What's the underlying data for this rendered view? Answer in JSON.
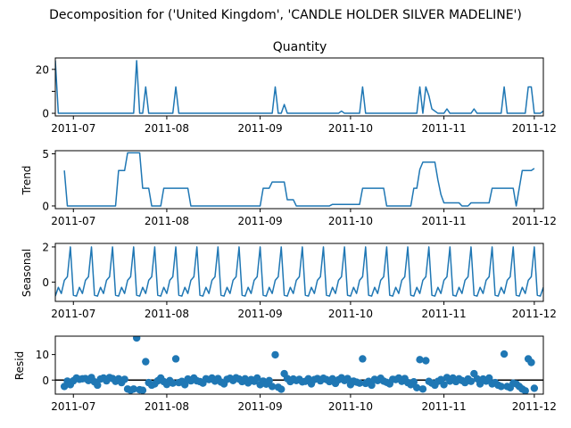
{
  "figure": {
    "suptitle": "Decomposition for ('United Kingdom', 'CANDLE HOLDER SILVER MADELINE')",
    "line_color": "#1f77b4",
    "zero_line_color": "#000000"
  },
  "chart_data": [
    {
      "type": "line",
      "title": "Quantity",
      "ylabel": "",
      "xlabel": "",
      "x_range": [
        "2011-06-25",
        "2011-12-04"
      ],
      "x_ticks": [
        "2011-07",
        "2011-08",
        "2011-09",
        "2011-10",
        "2011-11",
        "2011-12"
      ],
      "ylim": [
        -1.2,
        25.2
      ],
      "y_ticks": [
        0,
        10,
        20
      ],
      "y_tick_labels": [
        "0",
        "",
        "20"
      ],
      "points": [
        [
          "2011-06-25",
          24
        ],
        [
          "2011-06-26",
          0
        ],
        [
          "2011-07-21",
          0
        ],
        [
          "2011-07-22",
          24
        ],
        [
          "2011-07-23",
          0
        ],
        [
          "2011-07-24",
          0
        ],
        [
          "2011-07-25",
          12
        ],
        [
          "2011-07-26",
          0
        ],
        [
          "2011-08-03",
          0
        ],
        [
          "2011-08-04",
          12
        ],
        [
          "2011-08-05",
          0
        ],
        [
          "2011-09-05",
          0
        ],
        [
          "2011-09-06",
          12
        ],
        [
          "2011-09-07",
          0
        ],
        [
          "2011-09-08",
          0
        ],
        [
          "2011-09-09",
          4
        ],
        [
          "2011-09-10",
          0
        ],
        [
          "2011-09-27",
          0
        ],
        [
          "2011-09-28",
          1
        ],
        [
          "2011-09-29",
          0
        ],
        [
          "2011-10-04",
          0
        ],
        [
          "2011-10-05",
          12
        ],
        [
          "2011-10-06",
          0
        ],
        [
          "2011-10-23",
          0
        ],
        [
          "2011-10-24",
          12
        ],
        [
          "2011-10-25",
          0
        ],
        [
          "2011-10-26",
          12
        ],
        [
          "2011-10-27",
          8
        ],
        [
          "2011-10-28",
          2
        ],
        [
          "2011-10-30",
          0
        ],
        [
          "2011-11-01",
          0
        ],
        [
          "2011-11-02",
          2
        ],
        [
          "2011-11-03",
          0
        ],
        [
          "2011-11-10",
          0
        ],
        [
          "2011-11-11",
          2
        ],
        [
          "2011-11-12",
          0
        ],
        [
          "2011-11-20",
          0
        ],
        [
          "2011-11-21",
          12
        ],
        [
          "2011-11-22",
          0
        ],
        [
          "2011-11-28",
          0
        ],
        [
          "2011-11-29",
          12
        ],
        [
          "2011-11-30",
          12
        ],
        [
          "2011-12-01",
          0
        ],
        [
          "2011-12-03",
          0
        ],
        [
          "2011-12-04",
          1
        ]
      ]
    },
    {
      "type": "line",
      "title": "",
      "ylabel": "Trend",
      "xlabel": "",
      "x_range": [
        "2011-06-25",
        "2011-12-04"
      ],
      "x_ticks": [
        "2011-07",
        "2011-08",
        "2011-09",
        "2011-10",
        "2011-11",
        "2011-12"
      ],
      "ylim": [
        -0.26,
        5.3
      ],
      "y_ticks": [
        0,
        5
      ],
      "y_tick_labels": [
        "0",
        "5"
      ],
      "points": [
        [
          "2011-06-28",
          3.4
        ],
        [
          "2011-06-29",
          0
        ],
        [
          "2011-07-15",
          0
        ],
        [
          "2011-07-16",
          3.4
        ],
        [
          "2011-07-18",
          3.4
        ],
        [
          "2011-07-19",
          5.1
        ],
        [
          "2011-07-23",
          5.1
        ],
        [
          "2011-07-24",
          1.7
        ],
        [
          "2011-07-26",
          1.7
        ],
        [
          "2011-07-27",
          0
        ],
        [
          "2011-07-30",
          0
        ],
        [
          "2011-07-31",
          1.7
        ],
        [
          "2011-08-08",
          1.7
        ],
        [
          "2011-08-09",
          0
        ],
        [
          "2011-09-01",
          0
        ],
        [
          "2011-09-02",
          1.7
        ],
        [
          "2011-09-04",
          1.7
        ],
        [
          "2011-09-05",
          2.3
        ],
        [
          "2011-09-09",
          2.3
        ],
        [
          "2011-09-10",
          0.6
        ],
        [
          "2011-09-12",
          0.6
        ],
        [
          "2011-09-13",
          0
        ],
        [
          "2011-09-24",
          0
        ],
        [
          "2011-09-25",
          0.15
        ],
        [
          "2011-10-04",
          0.15
        ],
        [
          "2011-10-05",
          1.7
        ],
        [
          "2011-10-12",
          1.7
        ],
        [
          "2011-10-13",
          0
        ],
        [
          "2011-10-21",
          0
        ],
        [
          "2011-10-22",
          1.7
        ],
        [
          "2011-10-23",
          1.7
        ],
        [
          "2011-10-24",
          3.5
        ],
        [
          "2011-10-25",
          4.2
        ],
        [
          "2011-10-29",
          4.2
        ],
        [
          "2011-10-30",
          2.5
        ],
        [
          "2011-10-31",
          1.1
        ],
        [
          "2011-11-01",
          0.3
        ],
        [
          "2011-11-06",
          0.3
        ],
        [
          "2011-11-07",
          0
        ],
        [
          "2011-11-09",
          0
        ],
        [
          "2011-11-10",
          0.3
        ],
        [
          "2011-11-16",
          0.3
        ],
        [
          "2011-11-17",
          1.7
        ],
        [
          "2011-11-24",
          1.7
        ],
        [
          "2011-11-25",
          0
        ],
        [
          "2011-11-27",
          3.4
        ],
        [
          "2011-11-30",
          3.4
        ],
        [
          "2011-12-01",
          3.6
        ]
      ]
    },
    {
      "type": "line",
      "title": "",
      "ylabel": "Seasonal",
      "xlabel": "",
      "x_range": [
        "2011-06-25",
        "2011-12-04"
      ],
      "x_ticks": [
        "2011-07",
        "2011-08",
        "2011-09",
        "2011-10",
        "2011-11",
        "2011-12"
      ],
      "ylim": [
        -1.1,
        2.2
      ],
      "y_ticks": [
        0,
        2
      ],
      "y_tick_labels": [
        "0",
        "2"
      ],
      "period": 7,
      "cycle_start": "2011-06-25",
      "pattern": [
        -0.8,
        -0.3,
        -0.65,
        0.1,
        0.3,
        2.0,
        -0.75
      ]
    },
    {
      "type": "scatter",
      "title": "",
      "ylabel": "Resid",
      "xlabel": "",
      "x_range": [
        "2011-06-25",
        "2011-12-04"
      ],
      "x_ticks": [
        "2011-07",
        "2011-08",
        "2011-09",
        "2011-10",
        "2011-11",
        "2011-12"
      ],
      "ylim": [
        -5.5,
        17.2
      ],
      "y_ticks": [
        0,
        10
      ],
      "y_tick_labels": [
        "0",
        "10"
      ],
      "zero_line": true,
      "points": [
        [
          "2011-06-28",
          -2.5
        ],
        [
          "2011-06-29",
          -0.4
        ],
        [
          "2011-06-30",
          -1.8
        ],
        [
          "2011-07-01",
          -0.3
        ],
        [
          "2011-07-02",
          0.8
        ],
        [
          "2011-07-03",
          0.3
        ],
        [
          "2011-07-04",
          0.5
        ],
        [
          "2011-07-05",
          0.6
        ],
        [
          "2011-07-06",
          -0.2
        ],
        [
          "2011-07-07",
          1.0
        ],
        [
          "2011-07-08",
          -0.7
        ],
        [
          "2011-07-09",
          -2.0
        ],
        [
          "2011-07-10",
          0.4
        ],
        [
          "2011-07-11",
          0.8
        ],
        [
          "2011-07-12",
          -0.3
        ],
        [
          "2011-07-13",
          1.0
        ],
        [
          "2011-07-14",
          0.6
        ],
        [
          "2011-07-15",
          -0.5
        ],
        [
          "2011-07-16",
          0.5
        ],
        [
          "2011-07-17",
          -1.0
        ],
        [
          "2011-07-18",
          0.3
        ],
        [
          "2011-07-19",
          -3.5
        ],
        [
          "2011-07-20",
          -4.0
        ],
        [
          "2011-07-21",
          -3.5
        ],
        [
          "2011-07-22",
          16.5
        ],
        [
          "2011-07-23",
          -3.8
        ],
        [
          "2011-07-24",
          -4.0
        ],
        [
          "2011-07-25",
          7.2
        ],
        [
          "2011-07-26",
          -1.0
        ],
        [
          "2011-07-27",
          -2.0
        ],
        [
          "2011-07-28",
          -1.5
        ],
        [
          "2011-07-29",
          -0.3
        ],
        [
          "2011-07-30",
          0.8
        ],
        [
          "2011-07-31",
          -0.6
        ],
        [
          "2011-08-01",
          -1.7
        ],
        [
          "2011-08-02",
          -0.2
        ],
        [
          "2011-08-03",
          -1.2
        ],
        [
          "2011-08-04",
          8.3
        ],
        [
          "2011-08-05",
          -1.0
        ],
        [
          "2011-08-06",
          -0.5
        ],
        [
          "2011-08-07",
          -1.8
        ],
        [
          "2011-08-08",
          0.4
        ],
        [
          "2011-08-09",
          -0.3
        ],
        [
          "2011-08-10",
          0.8
        ],
        [
          "2011-08-11",
          -0.3
        ],
        [
          "2011-08-12",
          -0.6
        ],
        [
          "2011-08-13",
          -1.2
        ],
        [
          "2011-08-14",
          0.5
        ],
        [
          "2011-08-15",
          0.2
        ],
        [
          "2011-08-16",
          0.8
        ],
        [
          "2011-08-17",
          -0.4
        ],
        [
          "2011-08-18",
          0.6
        ],
        [
          "2011-08-19",
          -0.8
        ],
        [
          "2011-08-20",
          -1.5
        ],
        [
          "2011-08-21",
          0.3
        ],
        [
          "2011-08-22",
          0.7
        ],
        [
          "2011-08-23",
          -0.2
        ],
        [
          "2011-08-24",
          0.9
        ],
        [
          "2011-08-25",
          0.4
        ],
        [
          "2011-08-26",
          -0.6
        ],
        [
          "2011-08-27",
          0.5
        ],
        [
          "2011-08-28",
          -1.1
        ],
        [
          "2011-08-29",
          0.2
        ],
        [
          "2011-08-30",
          -0.5
        ],
        [
          "2011-08-31",
          0.8
        ],
        [
          "2011-09-01",
          -1.8
        ],
        [
          "2011-09-02",
          -0.4
        ],
        [
          "2011-09-03",
          -1.6
        ],
        [
          "2011-09-04",
          -0.2
        ],
        [
          "2011-09-05",
          -2.5
        ],
        [
          "2011-09-06",
          9.9
        ],
        [
          "2011-09-07",
          -2.8
        ],
        [
          "2011-09-08",
          -3.6
        ],
        [
          "2011-09-09",
          2.5
        ],
        [
          "2011-09-10",
          0.6
        ],
        [
          "2011-09-11",
          -0.6
        ],
        [
          "2011-09-12",
          0.4
        ],
        [
          "2011-09-13",
          -0.2
        ],
        [
          "2011-09-14",
          0.3
        ],
        [
          "2011-09-15",
          -0.7
        ],
        [
          "2011-09-16",
          -0.5
        ],
        [
          "2011-09-17",
          0.5
        ],
        [
          "2011-09-18",
          -1.5
        ],
        [
          "2011-09-19",
          0.2
        ],
        [
          "2011-09-20",
          0.6
        ],
        [
          "2011-09-21",
          -0.3
        ],
        [
          "2011-09-22",
          0.7
        ],
        [
          "2011-09-23",
          0.2
        ],
        [
          "2011-09-24",
          -0.6
        ],
        [
          "2011-09-25",
          0.5
        ],
        [
          "2011-09-26",
          -1.3
        ],
        [
          "2011-09-27",
          0.1
        ],
        [
          "2011-09-28",
          0.9
        ],
        [
          "2011-09-29",
          -0.2
        ],
        [
          "2011-09-30",
          0.6
        ],
        [
          "2011-10-01",
          -1.8
        ],
        [
          "2011-10-02",
          -0.4
        ],
        [
          "2011-10-03",
          -0.8
        ],
        [
          "2011-10-04",
          -1.2
        ],
        [
          "2011-10-05",
          8.3
        ],
        [
          "2011-10-06",
          -1.3
        ],
        [
          "2011-10-07",
          -0.5
        ],
        [
          "2011-10-08",
          -2.0
        ],
        [
          "2011-10-09",
          0.3
        ],
        [
          "2011-10-10",
          -0.2
        ],
        [
          "2011-10-11",
          0.7
        ],
        [
          "2011-10-12",
          -0.4
        ],
        [
          "2011-10-13",
          -0.9
        ],
        [
          "2011-10-14",
          -1.5
        ],
        [
          "2011-10-15",
          0.3
        ],
        [
          "2011-10-16",
          0.2
        ],
        [
          "2011-10-17",
          0.8
        ],
        [
          "2011-10-18",
          -0.5
        ],
        [
          "2011-10-19",
          0.6
        ],
        [
          "2011-10-20",
          -1.0
        ],
        [
          "2011-10-21",
          -1.8
        ],
        [
          "2011-10-22",
          -0.7
        ],
        [
          "2011-10-23",
          -3.0
        ],
        [
          "2011-10-24",
          8.0
        ],
        [
          "2011-10-25",
          -3.5
        ],
        [
          "2011-10-26",
          7.6
        ],
        [
          "2011-10-27",
          -0.5
        ],
        [
          "2011-10-28",
          -1.2
        ],
        [
          "2011-10-29",
          -2.0
        ],
        [
          "2011-10-30",
          -0.5
        ],
        [
          "2011-10-31",
          0.2
        ],
        [
          "2011-11-01",
          -1.8
        ],
        [
          "2011-11-02",
          1.0
        ],
        [
          "2011-11-03",
          -0.4
        ],
        [
          "2011-11-04",
          0.8
        ],
        [
          "2011-11-05",
          -0.6
        ],
        [
          "2011-11-06",
          0.5
        ],
        [
          "2011-11-07",
          -0.2
        ],
        [
          "2011-11-08",
          -1.0
        ],
        [
          "2011-11-09",
          0.4
        ],
        [
          "2011-11-10",
          -0.5
        ],
        [
          "2011-11-11",
          2.5
        ],
        [
          "2011-11-12",
          0.5
        ],
        [
          "2011-11-13",
          -1.5
        ],
        [
          "2011-11-14",
          0.4
        ],
        [
          "2011-11-15",
          -0.4
        ],
        [
          "2011-11-16",
          0.8
        ],
        [
          "2011-11-17",
          -1.5
        ],
        [
          "2011-11-18",
          -1.0
        ],
        [
          "2011-11-19",
          -2.0
        ],
        [
          "2011-11-20",
          -2.5
        ],
        [
          "2011-11-21",
          10.2
        ],
        [
          "2011-11-22",
          -2.5
        ],
        [
          "2011-11-23",
          -3.0
        ],
        [
          "2011-11-24",
          -1.2
        ],
        [
          "2011-11-25",
          -1.5
        ],
        [
          "2011-11-26",
          -2.5
        ],
        [
          "2011-11-27",
          -3.5
        ],
        [
          "2011-11-28",
          -4.2
        ],
        [
          "2011-11-29",
          8.3
        ],
        [
          "2011-11-30",
          6.9
        ],
        [
          "2011-12-01",
          -3.2
        ]
      ]
    }
  ]
}
